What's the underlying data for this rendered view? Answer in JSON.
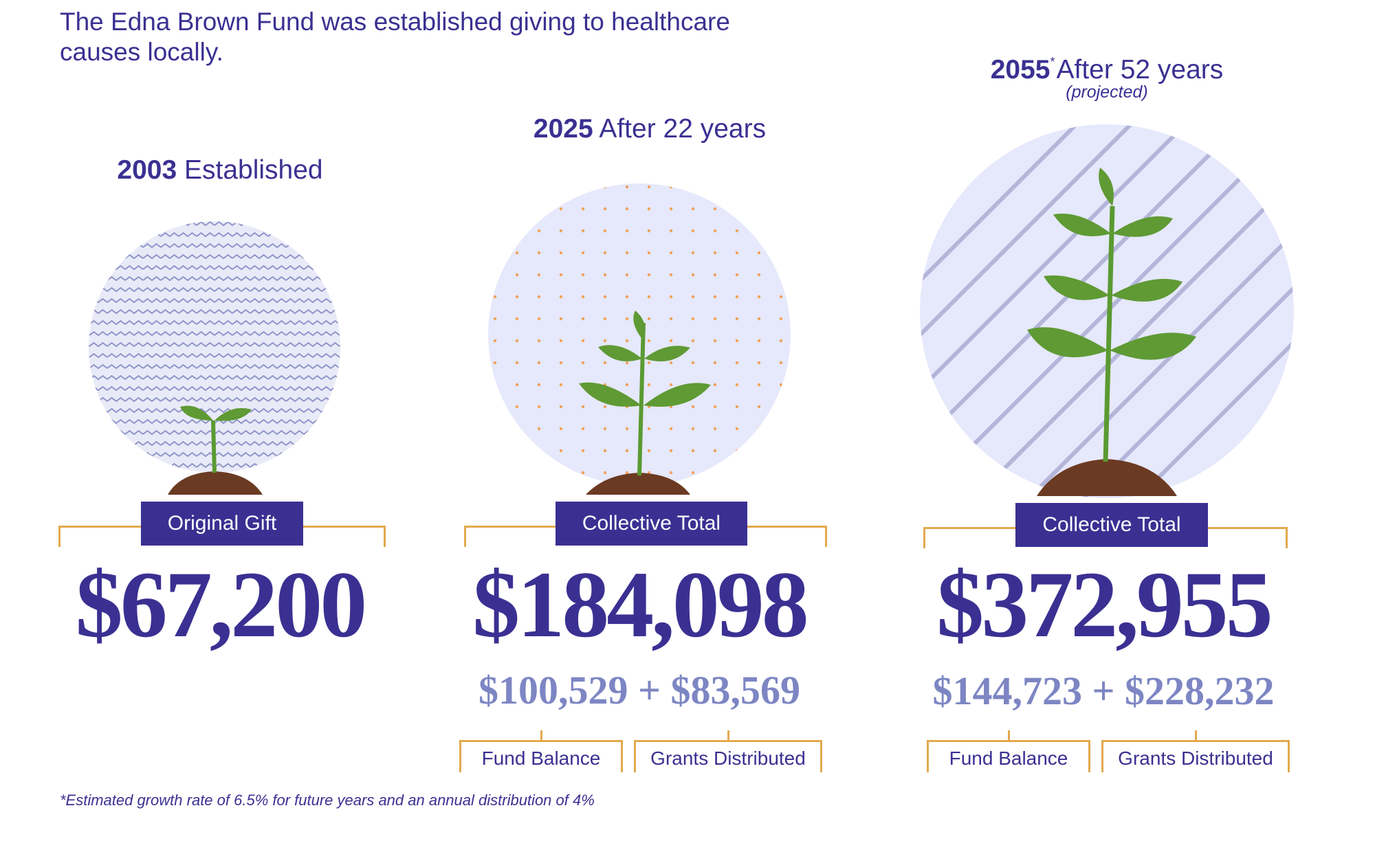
{
  "intro": "The Edna Brown Fund was established giving to healthcare causes locally.",
  "stages": [
    {
      "year": "2003",
      "title": "Established",
      "marker": "",
      "note": "",
      "label": "Original Gift",
      "total": "$67,200"
    },
    {
      "year": "2025",
      "title": "After 22 years",
      "marker": "",
      "note": "",
      "label": "Collective Total",
      "total": "$184,098",
      "balance": "$100,529",
      "grants": "$83,569",
      "balance_label": "Fund Balance",
      "grants_label": "Grants Distributed"
    },
    {
      "year": "2055",
      "title": "After 52 years",
      "marker": "*",
      "note": "(projected)",
      "label": "Collective Total",
      "total": "$372,955",
      "balance": "$144,723",
      "grants": "$228,232",
      "balance_label": "Fund Balance",
      "grants_label": "Grants Distributed"
    }
  ],
  "plus": "+",
  "footnote": "*Estimated growth rate of 6.5% for future years and an annual distribution of 4%",
  "colors": {
    "primary": "#3b3092",
    "secondary": "#7d86c3",
    "bracket": "#e3a94d",
    "circle": "#e6e8fb",
    "leaf": "#5f9a34",
    "soil": "#6b3a22"
  },
  "icons": [
    "seedling-icon",
    "young-plant-icon",
    "grown-plant-icon"
  ]
}
